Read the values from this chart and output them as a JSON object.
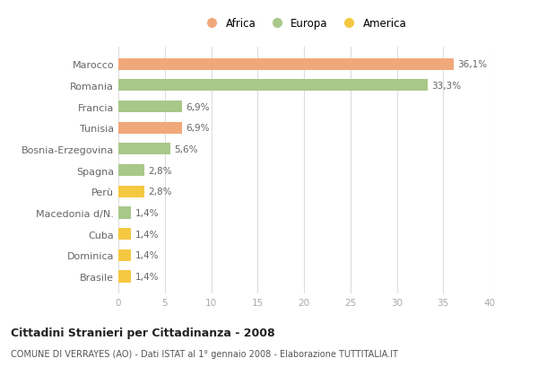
{
  "categories": [
    "Brasile",
    "Dominica",
    "Cuba",
    "Macedonia d/N.",
    "Perù",
    "Spagna",
    "Bosnia-Erzegovina",
    "Tunisia",
    "Francia",
    "Romania",
    "Marocco"
  ],
  "values": [
    1.4,
    1.4,
    1.4,
    1.4,
    2.8,
    2.8,
    5.6,
    6.9,
    6.9,
    33.3,
    36.1
  ],
  "colors": [
    "#f5c842",
    "#f5c842",
    "#f5c842",
    "#a8c88a",
    "#f5c842",
    "#a8c88a",
    "#a8c88a",
    "#f0a87a",
    "#a8c88a",
    "#a8c88a",
    "#f0a87a"
  ],
  "labels": [
    "1,4%",
    "1,4%",
    "1,4%",
    "1,4%",
    "2,8%",
    "2,8%",
    "5,6%",
    "6,9%",
    "6,9%",
    "33,3%",
    "36,1%"
  ],
  "legend_labels": [
    "Africa",
    "Europa",
    "America"
  ],
  "legend_colors": [
    "#f0a87a",
    "#a8c88a",
    "#f5c842"
  ],
  "title": "Cittadini Stranieri per Cittadinanza - 2008",
  "subtitle": "COMUNE DI VERRAYES (AO) - Dati ISTAT al 1° gennaio 2008 - Elaborazione TUTTITALIA.IT",
  "xlim": [
    0,
    40
  ],
  "xticks": [
    0,
    5,
    10,
    15,
    20,
    25,
    30,
    35,
    40
  ],
  "background_color": "#ffffff",
  "grid_color": "#dddddd",
  "bar_height": 0.55
}
